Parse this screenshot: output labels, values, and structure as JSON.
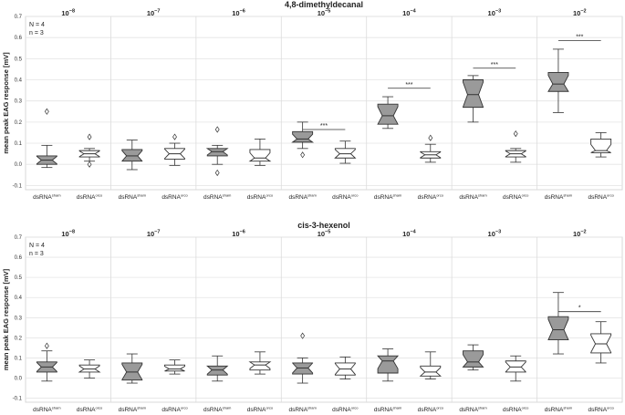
{
  "chart_data": [
    {
      "type": "boxplot",
      "title": "4,8-dimethyldecanal",
      "ylabel": "mean peak EAG response [mV]",
      "ylim": [
        -0.12,
        0.7
      ],
      "yticks": [
        -0.1,
        0.0,
        0.1,
        0.2,
        0.3,
        0.4,
        0.5,
        0.6,
        0.7
      ],
      "annotations": [
        "N = 4",
        "n = 3"
      ],
      "group_labels": [
        {
          "base": "10",
          "exp": "−8"
        },
        {
          "base": "10",
          "exp": "−7"
        },
        {
          "base": "10",
          "exp": "−6"
        },
        {
          "base": "10",
          "exp": "−5"
        },
        {
          "base": "10",
          "exp": "−4"
        },
        {
          "base": "10",
          "exp": "−3"
        },
        {
          "base": "10",
          "exp": "−2"
        }
      ],
      "xticklabels": [
        {
          "base": "dsRNA",
          "sup": "sham"
        },
        {
          "base": "dsRNA",
          "sup": "orco"
        }
      ],
      "series": [
        {
          "name": "dsRNA sham",
          "fill": "#9a9a9a",
          "boxes": [
            {
              "min": -0.015,
              "q1": 0.0,
              "median": 0.02,
              "q3": 0.04,
              "max": 0.09,
              "outliers": [
                0.25
              ]
            },
            {
              "min": -0.025,
              "q1": 0.015,
              "median": 0.04,
              "q3": 0.07,
              "max": 0.115,
              "outliers": []
            },
            {
              "min": 0.0,
              "q1": 0.04,
              "median": 0.06,
              "q3": 0.075,
              "max": 0.09,
              "outliers": [
                0.165,
                -0.04
              ]
            },
            {
              "min": 0.075,
              "q1": 0.105,
              "median": 0.12,
              "q3": 0.155,
              "max": 0.2,
              "outliers": [
                0.045
              ]
            },
            {
              "min": 0.17,
              "q1": 0.19,
              "median": 0.23,
              "q3": 0.285,
              "max": 0.32,
              "outliers": []
            },
            {
              "min": 0.2,
              "q1": 0.27,
              "median": 0.33,
              "q3": 0.4,
              "max": 0.42,
              "outliers": []
            },
            {
              "min": 0.245,
              "q1": 0.345,
              "median": 0.38,
              "q3": 0.435,
              "max": 0.545,
              "outliers": []
            }
          ]
        },
        {
          "name": "dsRNA orco",
          "fill": "#ffffff",
          "boxes": [
            {
              "min": 0.015,
              "q1": 0.035,
              "median": 0.05,
              "q3": 0.065,
              "max": 0.075,
              "outliers": [
                0.13,
                0.0
              ]
            },
            {
              "min": -0.005,
              "q1": 0.025,
              "median": 0.05,
              "q3": 0.075,
              "max": 0.1,
              "outliers": [
                0.13
              ]
            },
            {
              "min": -0.005,
              "q1": 0.015,
              "median": 0.03,
              "q3": 0.07,
              "max": 0.12,
              "outliers": []
            },
            {
              "min": 0.005,
              "q1": 0.03,
              "median": 0.05,
              "q3": 0.075,
              "max": 0.11,
              "outliers": []
            },
            {
              "min": 0.01,
              "q1": 0.03,
              "median": 0.045,
              "q3": 0.06,
              "max": 0.095,
              "outliers": [
                0.125
              ]
            },
            {
              "min": 0.01,
              "q1": 0.035,
              "median": 0.05,
              "q3": 0.065,
              "max": 0.075,
              "outliers": [
                0.145
              ]
            },
            {
              "min": 0.035,
              "q1": 0.055,
              "median": 0.065,
              "q3": 0.12,
              "max": 0.15,
              "outliers": []
            }
          ]
        }
      ],
      "significance": [
        {
          "group": 3,
          "label": "***",
          "y": 0.165
        },
        {
          "group": 4,
          "label": "***",
          "y": 0.36
        },
        {
          "group": 5,
          "label": "***",
          "y": 0.455
        },
        {
          "group": 6,
          "label": "***",
          "y": 0.585
        }
      ]
    },
    {
      "type": "boxplot",
      "title": "cis-3-hexenol",
      "ylabel": "mean peak EAG response [mV]",
      "ylim": [
        -0.12,
        0.7
      ],
      "yticks": [
        -0.1,
        0.0,
        0.1,
        0.2,
        0.3,
        0.4,
        0.5,
        0.6,
        0.7
      ],
      "annotations": [
        "N = 4",
        "n = 3"
      ],
      "group_labels": [
        {
          "base": "10",
          "exp": "−8"
        },
        {
          "base": "10",
          "exp": "−7"
        },
        {
          "base": "10",
          "exp": "−6"
        },
        {
          "base": "10",
          "exp": "−5"
        },
        {
          "base": "10",
          "exp": "−4"
        },
        {
          "base": "10",
          "exp": "−3"
        },
        {
          "base": "10",
          "exp": "−2"
        }
      ],
      "xticklabels": [
        {
          "base": "dsRNA",
          "sup": "sham"
        },
        {
          "base": "dsRNA",
          "sup": "orco"
        }
      ],
      "series": [
        {
          "name": "dsRNA sham",
          "fill": "#9a9a9a",
          "boxes": [
            {
              "min": -0.015,
              "q1": 0.03,
              "median": 0.055,
              "q3": 0.08,
              "max": 0.135,
              "outliers": [
                0.16
              ]
            },
            {
              "min": -0.025,
              "q1": -0.01,
              "median": 0.03,
              "q3": 0.075,
              "max": 0.12,
              "outliers": []
            },
            {
              "min": -0.015,
              "q1": 0.015,
              "median": 0.04,
              "q3": 0.06,
              "max": 0.11,
              "outliers": []
            },
            {
              "min": -0.025,
              "q1": 0.02,
              "median": 0.05,
              "q3": 0.075,
              "max": 0.1,
              "outliers": [
                0.21
              ]
            },
            {
              "min": -0.015,
              "q1": 0.025,
              "median": 0.085,
              "q3": 0.11,
              "max": 0.145,
              "outliers": []
            },
            {
              "min": 0.04,
              "q1": 0.055,
              "median": 0.08,
              "q3": 0.135,
              "max": 0.165,
              "outliers": []
            },
            {
              "min": 0.12,
              "q1": 0.19,
              "median": 0.24,
              "q3": 0.305,
              "max": 0.425,
              "outliers": []
            }
          ]
        },
        {
          "name": "dsRNA orco",
          "fill": "#ffffff",
          "boxes": [
            {
              "min": 0.0,
              "q1": 0.03,
              "median": 0.045,
              "q3": 0.065,
              "max": 0.09,
              "outliers": []
            },
            {
              "min": 0.02,
              "q1": 0.035,
              "median": 0.045,
              "q3": 0.065,
              "max": 0.09,
              "outliers": []
            },
            {
              "min": 0.02,
              "q1": 0.04,
              "median": 0.065,
              "q3": 0.08,
              "max": 0.13,
              "outliers": []
            },
            {
              "min": -0.005,
              "q1": 0.015,
              "median": 0.045,
              "q3": 0.075,
              "max": 0.105,
              "outliers": []
            },
            {
              "min": -0.005,
              "q1": 0.01,
              "median": 0.03,
              "q3": 0.06,
              "max": 0.13,
              "outliers": []
            },
            {
              "min": -0.015,
              "q1": 0.03,
              "median": 0.055,
              "q3": 0.085,
              "max": 0.11,
              "outliers": []
            },
            {
              "min": 0.075,
              "q1": 0.125,
              "median": 0.17,
              "q3": 0.22,
              "max": 0.28,
              "outliers": []
            }
          ]
        }
      ],
      "significance": [
        {
          "group": 6,
          "label": "*",
          "y": 0.33
        }
      ]
    }
  ]
}
